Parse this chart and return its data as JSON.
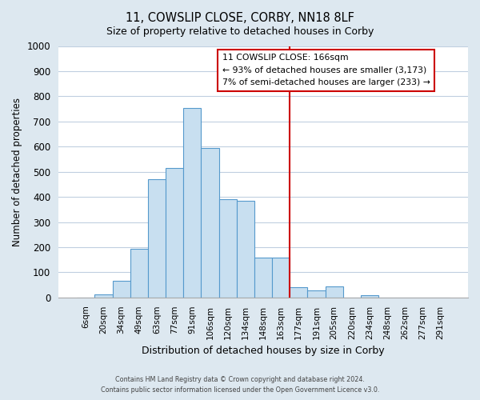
{
  "title": "11, COWSLIP CLOSE, CORBY, NN18 8LF",
  "subtitle": "Size of property relative to detached houses in Corby",
  "xlabel": "Distribution of detached houses by size in Corby",
  "ylabel": "Number of detached properties",
  "bar_labels": [
    "6sqm",
    "20sqm",
    "34sqm",
    "49sqm",
    "63sqm",
    "77sqm",
    "91sqm",
    "106sqm",
    "120sqm",
    "134sqm",
    "148sqm",
    "163sqm",
    "177sqm",
    "191sqm",
    "205sqm",
    "220sqm",
    "234sqm",
    "248sqm",
    "262sqm",
    "277sqm",
    "291sqm"
  ],
  "bar_values": [
    0,
    12,
    65,
    195,
    470,
    515,
    755,
    595,
    390,
    385,
    160,
    160,
    42,
    28,
    45,
    0,
    10,
    0,
    0,
    0,
    0
  ],
  "bar_color": "#c8dff0",
  "bar_edge_color": "#5599cc",
  "vline_color": "#cc0000",
  "vline_x": 11.5,
  "ylim": [
    0,
    1000
  ],
  "yticks": [
    0,
    100,
    200,
    300,
    400,
    500,
    600,
    700,
    800,
    900,
    1000
  ],
  "legend_title": "11 COWSLIP CLOSE: 166sqm",
  "legend_line1": "← 93% of detached houses are smaller (3,173)",
  "legend_line2": "7% of semi-detached houses are larger (233) →",
  "footer_line1": "Contains HM Land Registry data © Crown copyright and database right 2024.",
  "footer_line2": "Contains public sector information licensed under the Open Government Licence v3.0.",
  "figure_bg_color": "#dde8f0",
  "plot_bg_color": "#ffffff",
  "grid_color": "#c0cfe0"
}
